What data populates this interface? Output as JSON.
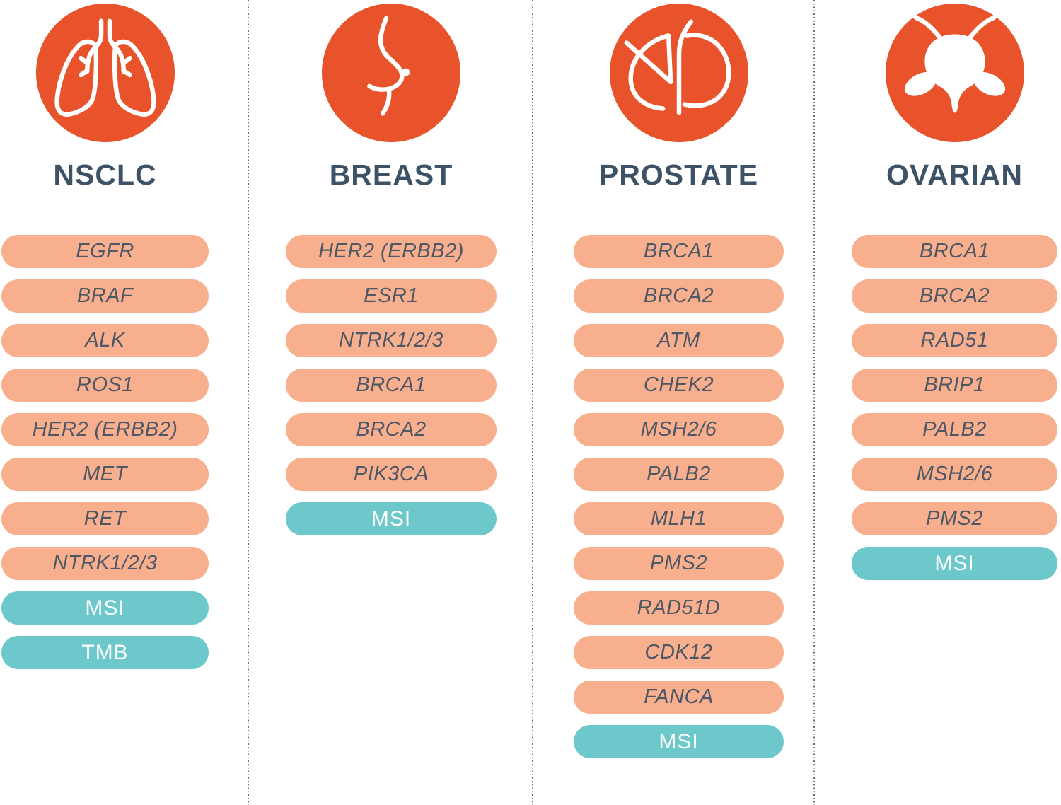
{
  "colors": {
    "orange": "#E9532B",
    "salmon": "#F7AF8E",
    "teal": "#6CC8CA",
    "title": "#3E5266",
    "gene": "#4D5765",
    "special": "#FFFFFF",
    "separator": "#6F6F6F"
  },
  "columns": [
    {
      "title": "NSCLC",
      "icon": "lungs-icon",
      "pills": [
        {
          "label": "EGFR",
          "type": "gene"
        },
        {
          "label": "BRAF",
          "type": "gene"
        },
        {
          "label": "ALK",
          "type": "gene"
        },
        {
          "label": "ROS1",
          "type": "gene"
        },
        {
          "label": "HER2 (ERBB2)",
          "type": "gene"
        },
        {
          "label": "MET",
          "type": "gene"
        },
        {
          "label": "RET",
          "type": "gene"
        },
        {
          "label": "NTRK1/2/3",
          "type": "gene"
        },
        {
          "label": "MSI",
          "type": "special"
        },
        {
          "label": "TMB",
          "type": "special"
        }
      ]
    },
    {
      "title": "BREAST",
      "icon": "breast-icon",
      "pills": [
        {
          "label": "HER2 (ERBB2)",
          "type": "gene"
        },
        {
          "label": "ESR1",
          "type": "gene"
        },
        {
          "label": "NTRK1/2/3",
          "type": "gene"
        },
        {
          "label": "BRCA1",
          "type": "gene"
        },
        {
          "label": "BRCA2",
          "type": "gene"
        },
        {
          "label": "PIK3CA",
          "type": "gene"
        },
        {
          "label": "MSI",
          "type": "special"
        }
      ]
    },
    {
      "title": "PROSTATE",
      "icon": "prostate-icon",
      "pills": [
        {
          "label": "BRCA1",
          "type": "gene"
        },
        {
          "label": "BRCA2",
          "type": "gene"
        },
        {
          "label": "ATM",
          "type": "gene"
        },
        {
          "label": "CHEK2",
          "type": "gene"
        },
        {
          "label": "MSH2/6",
          "type": "gene"
        },
        {
          "label": "PALB2",
          "type": "gene"
        },
        {
          "label": "MLH1",
          "type": "gene"
        },
        {
          "label": "PMS2",
          "type": "gene"
        },
        {
          "label": "RAD51D",
          "type": "gene"
        },
        {
          "label": "CDK12",
          "type": "gene"
        },
        {
          "label": "FANCA",
          "type": "gene"
        },
        {
          "label": "MSI",
          "type": "special"
        }
      ]
    },
    {
      "title": "OVARIAN",
      "icon": "uterus-icon",
      "pills": [
        {
          "label": "BRCA1",
          "type": "gene"
        },
        {
          "label": "BRCA2",
          "type": "gene"
        },
        {
          "label": "RAD51",
          "type": "gene"
        },
        {
          "label": "BRIP1",
          "type": "gene"
        },
        {
          "label": "PALB2",
          "type": "gene"
        },
        {
          "label": "MSH2/6",
          "type": "gene"
        },
        {
          "label": "PMS2",
          "type": "gene"
        },
        {
          "label": "MSI",
          "type": "special"
        }
      ]
    }
  ]
}
